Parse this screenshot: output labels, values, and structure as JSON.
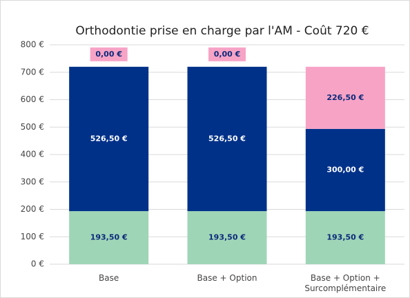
{
  "chart_data": {
    "type": "stacked-bar",
    "title": "Orthodontie prise en charge par l'AM - Coût 720 €",
    "categories": [
      "Base",
      "Base + Option",
      "Base + Option + Surcomplémentaire"
    ],
    "series": [
      {
        "color": "#9fd5b7",
        "label_color": "#0b2a7a",
        "values": [
          193.5,
          193.5,
          193.5
        ],
        "value_labels": [
          "193,50 €",
          "193,50 €",
          "193,50 €"
        ]
      },
      {
        "color": "#003189",
        "label_color": "#ffffff",
        "values": [
          526.5,
          526.5,
          300
        ],
        "value_labels": [
          "526,50 €",
          "526,50 €",
          "300,00 €"
        ]
      },
      {
        "color": "#f7a3c6",
        "label_color": "#0b2a7a",
        "values": [
          0,
          0,
          226.5
        ],
        "value_labels": [
          "0,00 €",
          "0,00 €",
          "226,50 €"
        ]
      }
    ],
    "ylim": [
      0,
      800
    ],
    "yticks": [
      {
        "value": 0,
        "label": "0 €"
      },
      {
        "value": 100,
        "label": "100 €"
      },
      {
        "value": 200,
        "label": "200 €"
      },
      {
        "value": 300,
        "label": "300 €"
      },
      {
        "value": 400,
        "label": "400 €"
      },
      {
        "value": 500,
        "label": "500 €"
      },
      {
        "value": 600,
        "label": "600 €"
      },
      {
        "value": 700,
        "label": "700 €"
      },
      {
        "value": 800,
        "label": "800 €"
      }
    ],
    "grid": true
  }
}
